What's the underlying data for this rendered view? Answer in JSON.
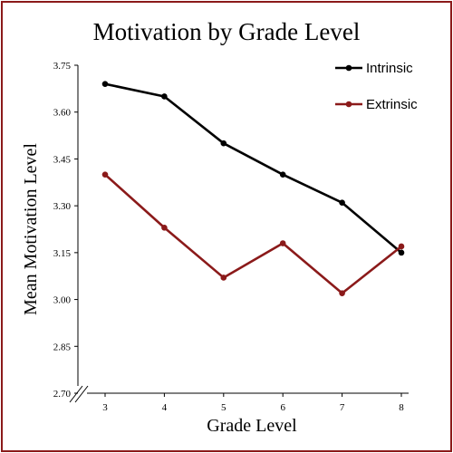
{
  "chart_data": {
    "type": "line",
    "title": "Motivation by Grade Level",
    "xlabel": "Grade Level",
    "ylabel": "Mean Motivation Level",
    "categories": [
      "3",
      "4",
      "5",
      "6",
      "7",
      "8"
    ],
    "y_ticks": [
      "2.70",
      "2.85",
      "3.00",
      "3.15",
      "3.30",
      "3.45",
      "3.60",
      "3.75"
    ],
    "ylim": [
      2.7,
      3.75
    ],
    "axis_break": true,
    "grid": false,
    "legend_position": "top-right",
    "series": [
      {
        "name": "Intrinsic",
        "color": "#000000",
        "values": [
          3.69,
          3.65,
          3.5,
          3.4,
          3.31,
          3.15
        ]
      },
      {
        "name": "Extrinsic",
        "color": "#8b1a1a",
        "values": [
          3.4,
          3.23,
          3.07,
          3.18,
          3.02,
          3.17
        ]
      }
    ]
  }
}
